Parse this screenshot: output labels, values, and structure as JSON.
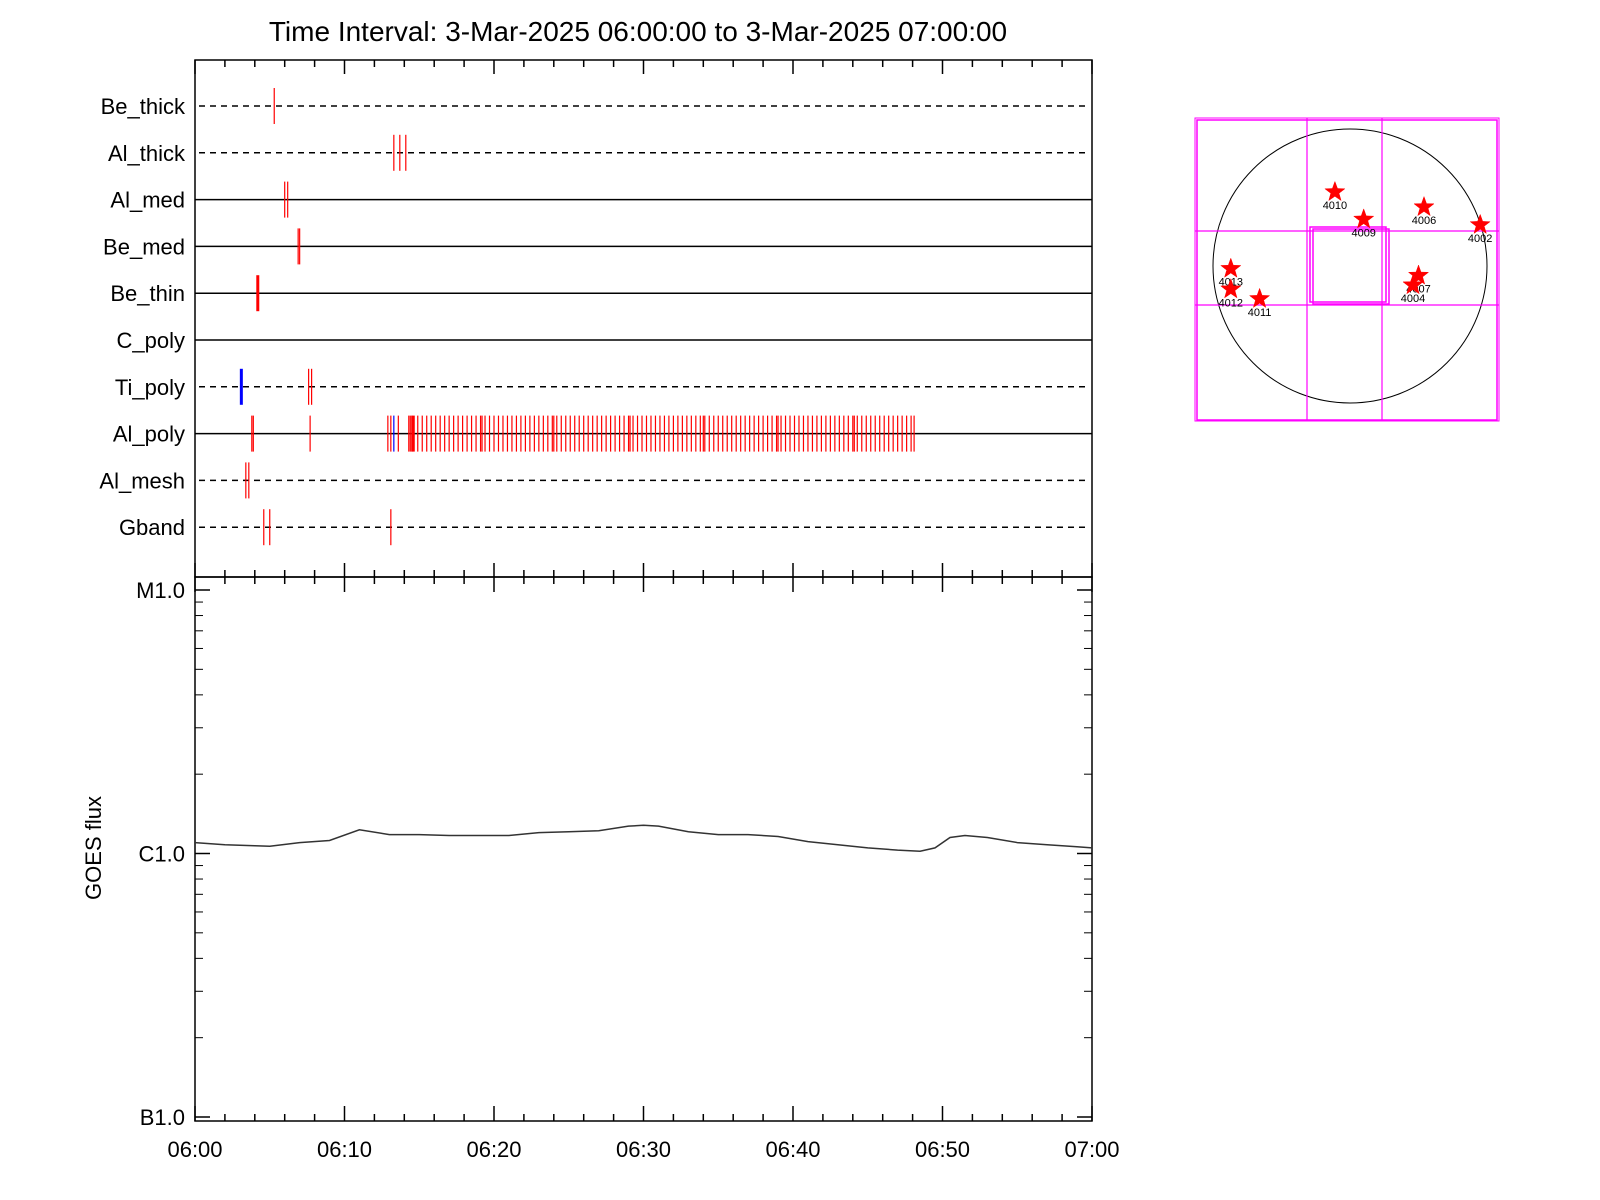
{
  "title": "Time Interval:  3-Mar-2025 06:00:00 to  3-Mar-2025 07:00:00",
  "colors": {
    "event": "#ff0000",
    "event_alt": "#0000ff",
    "goes_line": "#333333",
    "grid_box": "#ff00ff",
    "axis": "#000000"
  },
  "chart_data": [
    {
      "type": "timeline",
      "name_panel": "filter-events",
      "x_range_minutes": [
        0,
        60
      ],
      "rows": [
        {
          "label": "Be_thick",
          "line": "dashed",
          "events": [
            {
              "t": 5.3,
              "color": "red"
            }
          ]
        },
        {
          "label": "Al_thick",
          "line": "dashed",
          "events": [
            {
              "t": 13.3,
              "color": "red"
            },
            {
              "t": 13.7,
              "color": "red"
            },
            {
              "t": 14.1,
              "color": "red"
            }
          ]
        },
        {
          "label": "Al_med",
          "line": "solid",
          "events": [
            {
              "t": 6.0,
              "color": "red"
            },
            {
              "t": 6.2,
              "color": "red"
            }
          ]
        },
        {
          "label": "Be_med",
          "line": "solid",
          "events": [
            {
              "t": 6.9,
              "color": "red"
            },
            {
              "t": 7.0,
              "color": "red"
            }
          ]
        },
        {
          "label": "Be_thin",
          "line": "solid",
          "events": [
            {
              "t": 4.2,
              "color": "red",
              "bold": true
            }
          ]
        },
        {
          "label": "C_poly",
          "line": "solid",
          "events": []
        },
        {
          "label": "Ti_poly",
          "line": "dashed",
          "events": [
            {
              "t": 3.1,
              "color": "blue",
              "bold": true
            },
            {
              "t": 7.6,
              "color": "red"
            },
            {
              "t": 7.8,
              "color": "red"
            }
          ]
        },
        {
          "label": "Al_poly",
          "line": "solid",
          "events_times": [
            3.8,
            3.9,
            7.7,
            12.9,
            13.1,
            13.6,
            14.3,
            14.4,
            14.5,
            14.9,
            15.2,
            15.5,
            15.8,
            16.1,
            16.4,
            16.7,
            17.0,
            17.3,
            17.6,
            17.9,
            18.2,
            18.5,
            18.8,
            19.1,
            19.2,
            19.4,
            19.7,
            20.0,
            20.3,
            20.6,
            20.9,
            21.2,
            21.5,
            21.8,
            22.1,
            22.4,
            22.7,
            23.0,
            23.3,
            23.6,
            23.9,
            24.0,
            24.2,
            24.5,
            24.8,
            25.1,
            25.4,
            25.7,
            26.0,
            26.3,
            26.6,
            26.9,
            27.2,
            27.5,
            27.8,
            28.1,
            28.4,
            28.7,
            29.0,
            29.1,
            29.3,
            29.6,
            29.9,
            30.2,
            30.5,
            30.8,
            31.1,
            31.4,
            31.7,
            32.0,
            32.3,
            32.6,
            32.9,
            33.2,
            33.5,
            33.8,
            34.0,
            34.1,
            34.4,
            34.7,
            35.0,
            35.3,
            35.6,
            35.9,
            36.2,
            36.5,
            36.8,
            37.1,
            37.4,
            37.7,
            38.0,
            38.3,
            38.6,
            38.9,
            39.0,
            39.2,
            39.5,
            39.8,
            40.1,
            40.4,
            40.7,
            41.0,
            41.3,
            41.6,
            41.9,
            42.2,
            42.5,
            42.8,
            43.1,
            43.4,
            43.7,
            44.0,
            44.1,
            44.3,
            44.6,
            44.9,
            45.2,
            45.5,
            45.8,
            46.1,
            46.4,
            46.7,
            47.0,
            47.3,
            47.6,
            47.9,
            48.1
          ],
          "blue_times": [
            13.3
          ],
          "bold_times": [
            14.6
          ]
        },
        {
          "label": "Al_mesh",
          "line": "dashed",
          "events": [
            {
              "t": 3.4,
              "color": "red"
            },
            {
              "t": 3.6,
              "color": "red"
            }
          ]
        },
        {
          "label": "Gband",
          "line": "dashed",
          "events": [
            {
              "t": 4.6,
              "color": "red"
            },
            {
              "t": 5.0,
              "color": "red"
            },
            {
              "t": 13.1,
              "color": "red"
            }
          ]
        }
      ]
    },
    {
      "type": "line",
      "name_panel": "goes-flux",
      "ylabel": "GOES flux",
      "yscale": "log",
      "ylim": [
        1e-07,
        1e-05
      ],
      "ytick_labels": [
        {
          "value": 1e-07,
          "label": "B1.0"
        },
        {
          "value": 1e-06,
          "label": "C1.0"
        },
        {
          "value": 1e-05,
          "label": "M1.0"
        }
      ],
      "xtick_labels": [
        "06:00",
        "06:10",
        "06:20",
        "06:30",
        "06:40",
        "06:50",
        "07:00"
      ],
      "x_range_minutes": [
        0,
        60
      ],
      "series": [
        {
          "x": [
            0,
            2,
            4,
            5,
            7,
            9,
            11,
            13,
            15,
            17,
            19,
            21,
            23,
            25,
            27,
            29,
            30,
            31,
            33,
            35,
            37,
            39,
            41,
            43,
            45,
            47,
            48.5,
            49.5,
            50.5,
            51.5,
            53,
            55,
            57,
            59,
            60
          ],
          "y": [
            1.1e-06,
            1.08e-06,
            1.07e-06,
            1.065e-06,
            1.1e-06,
            1.12e-06,
            1.23e-06,
            1.18e-06,
            1.18e-06,
            1.17e-06,
            1.17e-06,
            1.17e-06,
            1.2e-06,
            1.21e-06,
            1.22e-06,
            1.27e-06,
            1.28e-06,
            1.27e-06,
            1.21e-06,
            1.18e-06,
            1.18e-06,
            1.16e-06,
            1.11e-06,
            1.08e-06,
            1.05e-06,
            1.03e-06,
            1.02e-06,
            1.05e-06,
            1.15e-06,
            1.17e-06,
            1.15e-06,
            1.1e-06,
            1.08e-06,
            1.06e-06,
            1.05e-06
          ]
        }
      ]
    },
    {
      "type": "scatter",
      "name_panel": "solar-disk-locator",
      "points": [
        {
          "label": "4010",
          "x": -0.11,
          "y": 0.54
        },
        {
          "label": "4009",
          "x": 0.1,
          "y": 0.34
        },
        {
          "label": "4006",
          "x": 0.54,
          "y": 0.43
        },
        {
          "label": "4002",
          "x": 0.95,
          "y": 0.3
        },
        {
          "label": "4013",
          "x": -0.87,
          "y": -0.02
        },
        {
          "label": "4012",
          "x": -0.87,
          "y": -0.17
        },
        {
          "label": "4011",
          "x": -0.66,
          "y": -0.24
        },
        {
          "label": "4007",
          "x": 0.5,
          "y": -0.07
        },
        {
          "label": "4004",
          "x": 0.46,
          "y": -0.14
        }
      ]
    }
  ]
}
